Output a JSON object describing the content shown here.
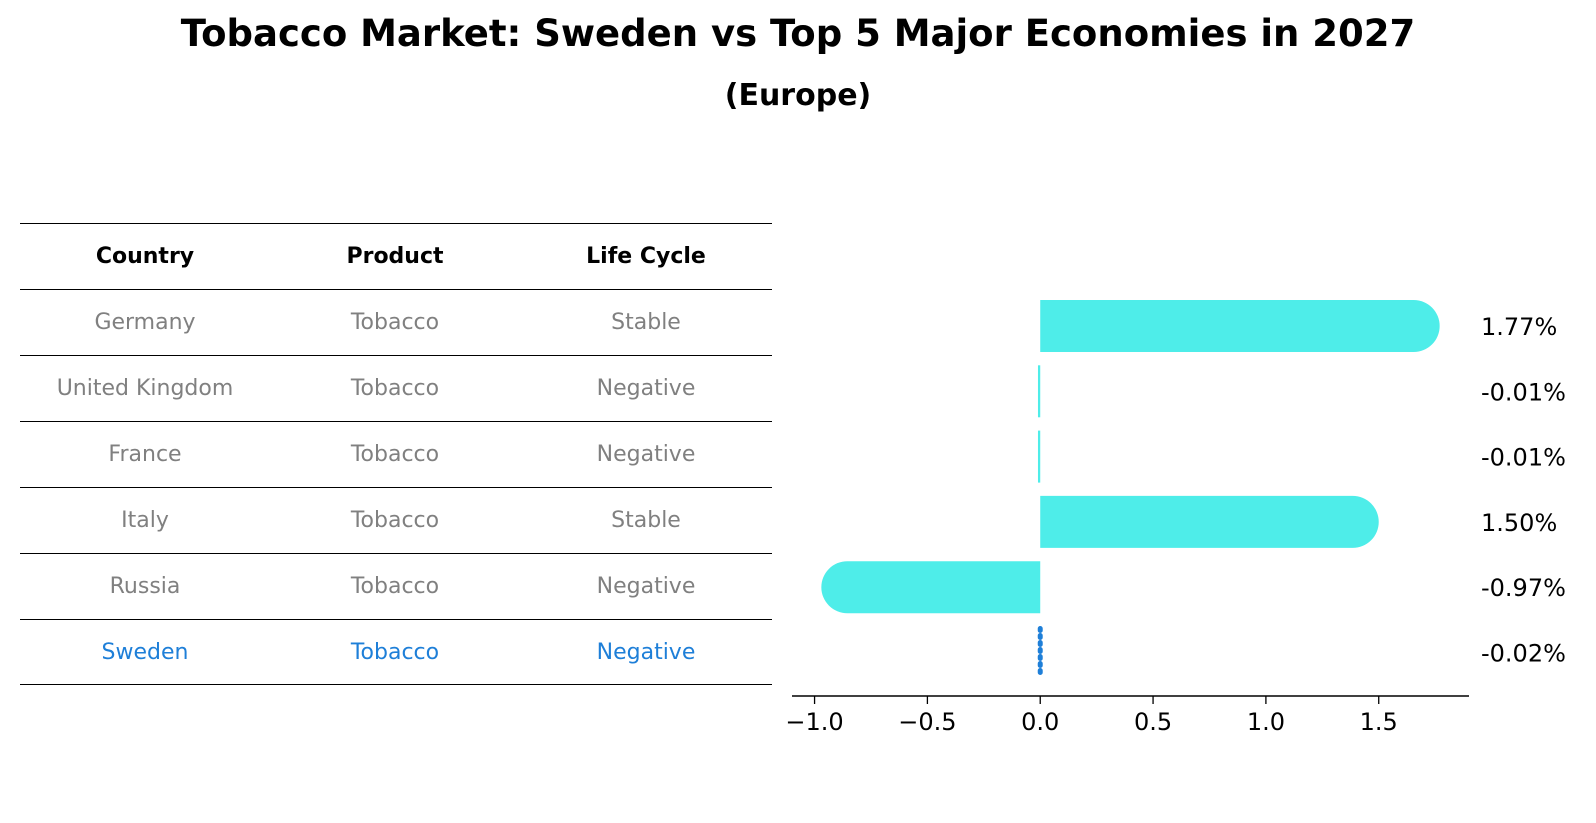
{
  "title": "Tobacco Market: Sweden vs Top 5 Major Economies in 2027",
  "subtitle": "(Europe)",
  "table": {
    "headers": [
      "Country",
      "Product",
      "Life Cycle"
    ],
    "rows": [
      [
        "Germany",
        "Tobacco",
        "Stable"
      ],
      [
        "United Kingdom",
        "Tobacco",
        "Negative"
      ],
      [
        "France",
        "Tobacco",
        "Negative"
      ],
      [
        "Italy",
        "Tobacco",
        "Stable"
      ],
      [
        "Russia",
        "Tobacco",
        "Negative"
      ],
      [
        "Sweden",
        "Tobacco",
        "Negative"
      ]
    ],
    "highlight_row": "Sweden"
  },
  "colors": {
    "bar": "#4eede9",
    "highlight": "#1e7fd8",
    "muted_text": "#808080"
  },
  "chart_data": {
    "type": "bar",
    "orientation": "horizontal",
    "categories": [
      "Germany",
      "United Kingdom",
      "France",
      "Italy",
      "Russia",
      "Sweden"
    ],
    "values": [
      1.77,
      -0.01,
      -0.01,
      1.5,
      -0.97,
      -0.02
    ],
    "value_labels": [
      "1.77%",
      "-0.01%",
      "-0.01%",
      "1.50%",
      "-0.97%",
      "-0.02%"
    ],
    "xticks": [
      "−1.0",
      "−0.5",
      "0.0",
      "0.5",
      "1.0",
      "1.5"
    ],
    "xtick_values": [
      -1.0,
      -0.5,
      0.0,
      0.5,
      1.0,
      1.5
    ],
    "xlim": [
      -1.1,
      1.9
    ],
    "grid": false,
    "xlabel": "",
    "ylabel": ""
  }
}
